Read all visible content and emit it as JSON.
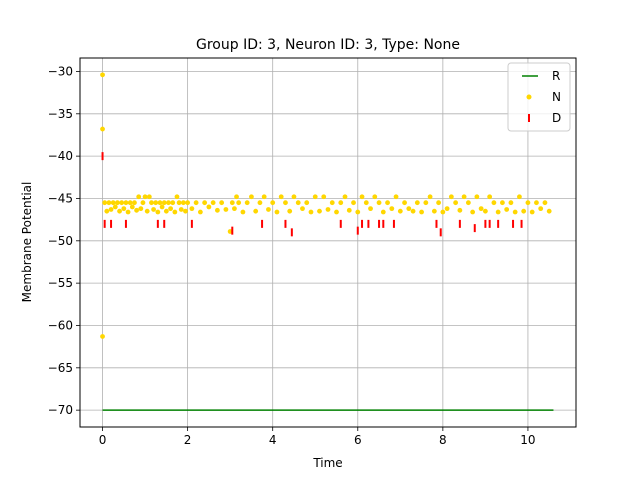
{
  "chart_data": {
    "type": "scatter",
    "title": "Group ID: 3, Neuron ID: 3, Type: None",
    "xlabel": "Time",
    "ylabel": "Membrane Potential",
    "xlim": [
      -0.53,
      11.13
    ],
    "ylim": [
      -71.99,
      -28.41
    ],
    "xticks": [
      0,
      2,
      4,
      6,
      8,
      10
    ],
    "yticks": [
      -30,
      -35,
      -40,
      -45,
      -50,
      -55,
      -60,
      -65,
      -70
    ],
    "grid": true,
    "legend_position": "top-right",
    "colors": {
      "R": "#008000",
      "N": "#ffd700",
      "D": "#ff0000",
      "axis": "#000000",
      "grid": "#b0b0b0"
    },
    "series": [
      {
        "name": "R",
        "kind": "line",
        "x": [
          0.0,
          10.6
        ],
        "y": [
          -70.0,
          -70.0
        ]
      },
      {
        "name": "N",
        "kind": "points",
        "x": [
          0.0,
          0.0,
          0.0,
          0.05,
          0.1,
          0.15,
          0.2,
          0.25,
          0.3,
          0.35,
          0.4,
          0.45,
          0.5,
          0.55,
          0.6,
          0.65,
          0.7,
          0.75,
          0.8,
          0.85,
          0.9,
          0.95,
          1.0,
          1.05,
          1.1,
          1.15,
          1.2,
          1.25,
          1.3,
          1.35,
          1.4,
          1.45,
          1.5,
          1.55,
          1.6,
          1.65,
          1.7,
          1.75,
          1.8,
          1.85,
          1.9,
          1.95,
          2.0,
          2.1,
          2.2,
          2.3,
          2.4,
          2.5,
          2.6,
          2.7,
          2.8,
          2.9,
          3.0,
          3.05,
          3.1,
          3.15,
          3.2,
          3.3,
          3.4,
          3.5,
          3.6,
          3.7,
          3.8,
          3.9,
          4.0,
          4.1,
          4.2,
          4.3,
          4.4,
          4.5,
          4.6,
          4.7,
          4.8,
          4.9,
          5.0,
          5.1,
          5.2,
          5.3,
          5.4,
          5.5,
          5.6,
          5.7,
          5.8,
          5.9,
          6.0,
          6.1,
          6.2,
          6.3,
          6.4,
          6.5,
          6.6,
          6.7,
          6.8,
          6.9,
          7.0,
          7.1,
          7.2,
          7.3,
          7.4,
          7.5,
          7.6,
          7.7,
          7.8,
          7.9,
          8.0,
          8.1,
          8.2,
          8.3,
          8.4,
          8.5,
          8.6,
          8.7,
          8.8,
          8.9,
          9.0,
          9.1,
          9.2,
          9.3,
          9.4,
          9.5,
          9.6,
          9.7,
          9.8,
          9.9,
          10.0,
          10.1,
          10.2,
          10.3,
          10.4,
          10.5
        ],
        "y": [
          -30.4,
          -36.8,
          -61.3,
          -45.5,
          -46.5,
          -45.5,
          -46.3,
          -45.5,
          -46.0,
          -45.5,
          -46.5,
          -45.5,
          -46.2,
          -45.5,
          -46.6,
          -45.5,
          -46.0,
          -45.5,
          -46.4,
          -44.8,
          -46.2,
          -45.5,
          -44.8,
          -46.5,
          -44.8,
          -45.5,
          -46.3,
          -45.5,
          -46.6,
          -45.5,
          -46.0,
          -45.5,
          -46.5,
          -45.5,
          -46.2,
          -45.5,
          -46.6,
          -44.8,
          -45.5,
          -46.3,
          -45.5,
          -46.5,
          -45.5,
          -46.2,
          -45.5,
          -46.6,
          -45.5,
          -46.0,
          -45.5,
          -46.4,
          -45.5,
          -46.3,
          -48.9,
          -45.5,
          -46.2,
          -44.8,
          -45.5,
          -46.6,
          -45.5,
          -44.8,
          -46.5,
          -45.5,
          -44.8,
          -46.3,
          -45.5,
          -46.6,
          -44.8,
          -45.5,
          -46.5,
          -44.8,
          -45.5,
          -46.2,
          -45.5,
          -46.6,
          -44.8,
          -46.5,
          -44.8,
          -46.3,
          -45.5,
          -46.6,
          -45.5,
          -44.8,
          -46.4,
          -45.5,
          -46.6,
          -44.8,
          -45.5,
          -46.2,
          -44.8,
          -45.5,
          -46.6,
          -45.5,
          -46.2,
          -44.8,
          -46.5,
          -45.5,
          -46.2,
          -46.5,
          -45.5,
          -46.6,
          -45.5,
          -44.8,
          -46.5,
          -45.5,
          -46.6,
          -46.2,
          -44.8,
          -45.5,
          -46.4,
          -44.8,
          -45.5,
          -46.6,
          -44.8,
          -46.2,
          -46.5,
          -44.8,
          -45.5,
          -46.6,
          -45.5,
          -46.3,
          -45.5,
          -46.6,
          -44.8,
          -46.5,
          -45.5,
          -46.6,
          -45.5,
          -46.2,
          -45.5,
          -46.5
        ]
      },
      {
        "name": "D",
        "kind": "vline-markers",
        "x": [
          0.0,
          0.05,
          0.2,
          0.55,
          1.3,
          1.45,
          2.1,
          3.05,
          3.75,
          4.3,
          4.45,
          5.6,
          6.0,
          6.1,
          6.25,
          6.5,
          6.6,
          6.85,
          7.85,
          7.95,
          8.4,
          8.75,
          9.0,
          9.1,
          9.3,
          9.65,
          9.85
        ],
        "y": [
          -40.0,
          -48.0,
          -48.0,
          -48.0,
          -48.0,
          -48.0,
          -48.0,
          -48.8,
          -48.0,
          -48.0,
          -49.0,
          -48.0,
          -48.8,
          -48.0,
          -48.0,
          -48.0,
          -48.0,
          -48.0,
          -48.0,
          -49.0,
          -48.0,
          -48.5,
          -48.0,
          -48.0,
          -48.0,
          -48.0,
          -48.0
        ]
      }
    ]
  }
}
